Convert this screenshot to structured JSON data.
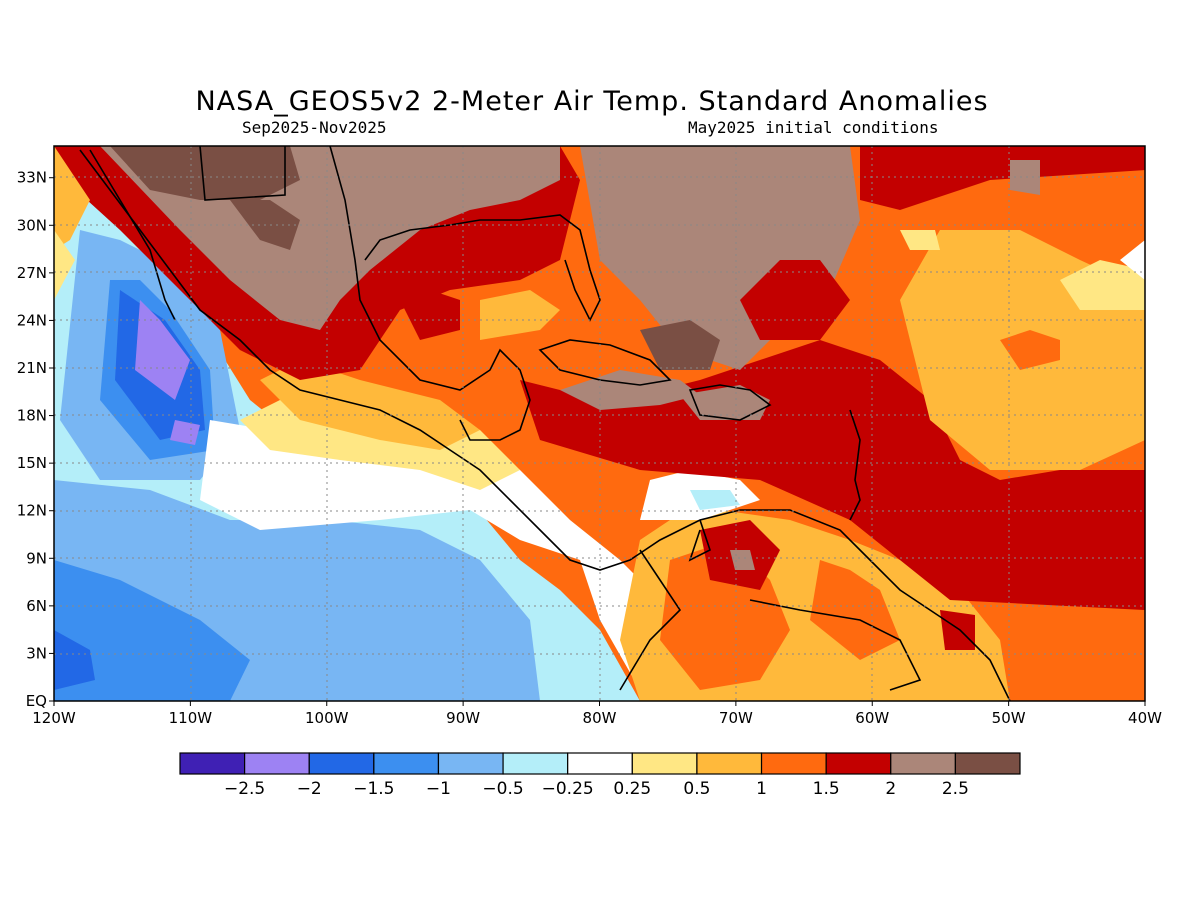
{
  "title": "NASA_GEOS5v2 2-Meter Air Temp. Standard Anomalies",
  "subtitle_left": "Sep2025-Nov2025",
  "subtitle_right": "May2025 initial conditions",
  "map": {
    "region": "Caribbean, Gulf of Mexico and eastern tropical Pacific",
    "lon_range": [
      -120,
      -40
    ],
    "lat_range": [
      0,
      35
    ],
    "x_ticks": [
      "120W",
      "110W",
      "100W",
      "90W",
      "80W",
      "70W",
      "60W",
      "50W",
      "40W"
    ],
    "y_ticks": [
      "33N",
      "30N",
      "27N",
      "24N",
      "21N",
      "18N",
      "15N",
      "12N",
      "9N",
      "6N",
      "3N",
      "EQ"
    ],
    "gridlines": true
  },
  "legend": {
    "colors": [
      "#3f20b4",
      "#9d82f3",
      "#2268e6",
      "#3c8ff0",
      "#78b6f3",
      "#b4eef9",
      "#ffffff",
      "#ffe784",
      "#ffb93b",
      "#ff6a0f",
      "#c30000",
      "#ab8679",
      "#7a4f44"
    ],
    "labels": [
      "-2.5",
      "-2",
      "-1.5",
      "-1",
      "-0.5",
      "-0.25",
      "0.25",
      "0.5",
      "1",
      "1.5",
      "2",
      "2.5"
    ]
  }
}
